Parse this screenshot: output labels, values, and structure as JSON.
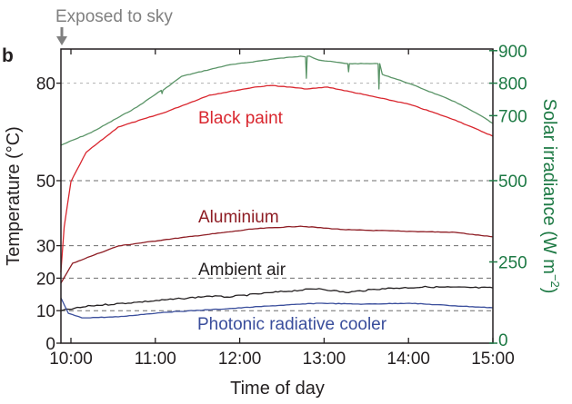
{
  "chart_data": {
    "type": "line",
    "panel_label": "b",
    "annotation": "Exposed to sky",
    "xlabel": "Time of day",
    "ylabel_left": "Temperature (°C)",
    "ylabel_right": "Solar irradiance (W m",
    "ylabel_right_sup": "−2",
    "ylabel_right_close": ")",
    "xlim": [
      9.88,
      15.0
    ],
    "ylim_left": [
      0,
      90
    ],
    "ylim_right": [
      0,
      900
    ],
    "x_ticks": [
      {
        "value": 10,
        "label": "10:00"
      },
      {
        "value": 11,
        "label": "11:00"
      },
      {
        "value": 12,
        "label": "12:00"
      },
      {
        "value": 13,
        "label": "13:00"
      },
      {
        "value": 14,
        "label": "14:00"
      },
      {
        "value": 15,
        "label": "15:00"
      }
    ],
    "y_ticks_left": [
      {
        "value": 0,
        "label": "0"
      },
      {
        "value": 10,
        "label": "10"
      },
      {
        "value": 20,
        "label": "20"
      },
      {
        "value": 30,
        "label": "30"
      },
      {
        "value": 50,
        "label": "50"
      },
      {
        "value": 80,
        "label": "80"
      }
    ],
    "y_ticks_right": [
      {
        "value": 0,
        "label": "0"
      },
      {
        "value": 250,
        "label": "250"
      },
      {
        "value": 500,
        "label": "500"
      },
      {
        "value": 700,
        "label": "700"
      },
      {
        "value": 800,
        "label": "800"
      },
      {
        "value": 900,
        "label": "900"
      }
    ],
    "gridlines_left": [
      10,
      20,
      30,
      50,
      80
    ],
    "colors": {
      "solar": "#5a9467",
      "black_paint": "#d9262e",
      "aluminium": "#8e1d24",
      "ambient": "#231f20",
      "photonic": "#3a4e9c",
      "right_axis": "#1e7a45",
      "annotation": "#808080"
    },
    "series": [
      {
        "name": "Solar irradiance",
        "axis": "right",
        "label": "",
        "color_key": "solar",
        "x": [
          9.88,
          10.24,
          10.78,
          11.07,
          11.08,
          11.09,
          11.31,
          11.85,
          12.39,
          12.72,
          12.78,
          12.79,
          12.8,
          12.83,
          12.94,
          13.28,
          13.29,
          13.3,
          13.47,
          13.64,
          13.65,
          13.66,
          13.69,
          14.01,
          14.55,
          14.87,
          15.0
        ],
        "y": [
          609,
          648,
          726,
          778,
          768,
          778,
          821,
          855,
          874,
          883,
          881,
          815,
          883,
          883,
          871,
          860,
          835,
          860,
          860,
          860,
          782,
          860,
          827,
          799,
          743,
          698,
          676
        ]
      },
      {
        "name": "Black paint",
        "axis": "left",
        "label": "Black paint",
        "color_key": "black_paint",
        "x": [
          9.88,
          9.92,
          10.0,
          10.18,
          10.56,
          11.1,
          11.64,
          12.18,
          12.39,
          12.8,
          13.04,
          13.47,
          14.01,
          14.55,
          15.0
        ],
        "y": [
          21.8,
          35.8,
          49.7,
          58.7,
          66.5,
          70.9,
          76.3,
          78.8,
          79.3,
          78.2,
          78.8,
          76.5,
          73.5,
          68.7,
          63.7
        ]
      },
      {
        "name": "Aluminium",
        "axis": "left",
        "label": "Aluminium",
        "color_key": "aluminium",
        "x": [
          9.88,
          10.02,
          10.24,
          10.56,
          11.1,
          11.64,
          12.18,
          12.72,
          13.26,
          14.01,
          14.55,
          15.0
        ],
        "y": [
          18.4,
          24.6,
          26.8,
          29.9,
          31.8,
          33.5,
          35.2,
          36.0,
          34.9,
          34.4,
          34.1,
          32.7
        ]
      },
      {
        "name": "Ambient air",
        "axis": "left",
        "label": "Ambient air",
        "color_key": "ambient",
        "x": [
          9.88,
          10.24,
          10.78,
          11.31,
          11.64,
          11.85,
          12.39,
          12.94,
          13.26,
          13.69,
          14.23,
          15.0
        ],
        "y": [
          10.0,
          11.5,
          12.6,
          13.7,
          14.5,
          14.2,
          15.6,
          16.8,
          15.6,
          16.8,
          17.3,
          17.0
        ],
        "noise": true
      },
      {
        "name": "Photonic radiative cooler",
        "axis": "left",
        "label": "Photonic radiative cooler",
        "color_key": "photonic",
        "x": [
          9.88,
          9.97,
          10.13,
          10.56,
          11.1,
          11.85,
          12.39,
          12.94,
          13.47,
          14.01,
          14.55,
          15.0
        ],
        "y": [
          14.0,
          9.2,
          7.8,
          8.1,
          9.5,
          10.6,
          11.5,
          12.3,
          12.0,
          12.3,
          11.5,
          10.9
        ]
      }
    ]
  }
}
